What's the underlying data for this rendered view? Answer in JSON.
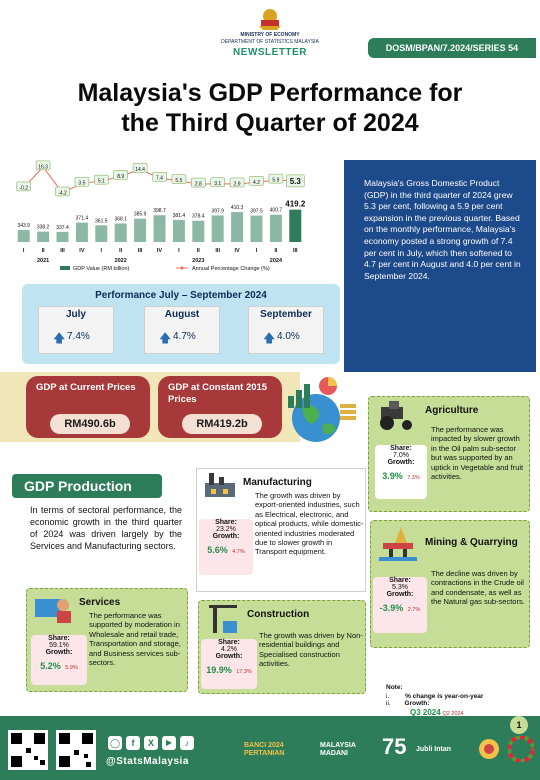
{
  "header": {
    "ministry": "MINISTRY OF ECONOMY",
    "department": "DEPARTMENT OF STATISTICS MALAYSIA",
    "newsletter": "NEWSLETTER",
    "series": "DOSM/BPAN/7.2024/SERIES 54"
  },
  "title_line1": "Malaysia's GDP Performance for",
  "title_line2": "the Third Quarter of 2024",
  "chart_data": {
    "type": "bar",
    "quarters": [
      "I",
      "II",
      "III",
      "IV",
      "I",
      "II",
      "III",
      "IV",
      "I",
      "II",
      "III",
      "IV",
      "I",
      "II",
      "III"
    ],
    "years": [
      "2021",
      "2022",
      "2023",
      "2024"
    ],
    "gdp_values": [
      343.9,
      338.2,
      337.4,
      371.4,
      361.5,
      368.1,
      385.9,
      398.7,
      381.4,
      378.4,
      397.9,
      410.3,
      397.5,
      400.7,
      419.2
    ],
    "gdp_value_labels": [
      "343.9",
      "338.2",
      "337.4",
      "371.4",
      "361.5",
      "368.1",
      "385.9",
      "398.7",
      "381.4",
      "378.4",
      "397.9",
      "410.3",
      "397.5",
      "400.7",
      "419.2"
    ],
    "pct_change": [
      -0.2,
      16.3,
      -4.2,
      3.5,
      5.1,
      8.9,
      14.4,
      7.4,
      5.5,
      2.8,
      3.1,
      2.9,
      4.2,
      5.9,
      5.3
    ],
    "pct_change_labels": [
      "-0.2",
      "16.3",
      "-4.2",
      "3.5",
      "5.1",
      "8.9",
      "14.4",
      "7.4",
      "5.5",
      "2.8",
      "3.1",
      "2.9",
      "4.2",
      "5.9",
      "5.3"
    ],
    "legend_gdp": "GDP Value (RM billion)",
    "legend_pct": "Annual Percentage Change (%)",
    "bar_color": "#2d7d5b",
    "line_color": "#e8705a"
  },
  "summary": "Malaysia's Gross Domestic Product (GDP) in the third quarter of 2024 grew 5.3 per cent, following a 5.9 per cent expansion in the previous quarter. Based on the monthly performance, Malaysia's economy posted a strong growth of 7.4 per cent in July, which then softened to 4.7 per cent in August and 4.0 per cent in September 2024.",
  "performance": {
    "title": "Performance July – September 2024",
    "months": [
      {
        "name": "July",
        "value": "7.4%"
      },
      {
        "name": "August",
        "value": "4.7%"
      },
      {
        "name": "September",
        "value": "4.0%"
      }
    ]
  },
  "gdp_current": {
    "label": "GDP at Current Prices",
    "value": "RM490.6b"
  },
  "gdp_constant": {
    "label": "GDP at Constant 2015 Prices",
    "value": "RM419.2b"
  },
  "production": {
    "title": "GDP Production",
    "text": "In terms of sectoral performance, the economic growth in the third quarter of 2024 was driven largely by the Services and Manufacturing sectors."
  },
  "labels": {
    "share": "Share:",
    "growth": "Growth:"
  },
  "agriculture": {
    "title": "Agriculture",
    "text": "The performance was impacted by slower growth in the Oil palm sub-sector but was supported by an uptick in Vegetable and fruit activities.",
    "share": "7.0%",
    "growth": "3.9%",
    "prev": "7.3%"
  },
  "manufacturing": {
    "title": "Manufacturing",
    "text": "The growth was driven by export-oriented industries, such as Electrical, electronic, and optical products, while domestic-oriented industries moderated due to slower growth in Transport equipment.",
    "share": "23.2%",
    "growth": "5.6%",
    "prev": "4.7%"
  },
  "mining": {
    "title": "Mining & Quarrying",
    "text": "The decline was driven by contractions in the Crude oil and condensate, as well as the Natural gas sub-sectors.",
    "share": "5.3%",
    "growth": "-3.9%",
    "prev": "2.7%"
  },
  "services": {
    "title": "Services",
    "text": "The performance was supported by moderation in Wholesale and retail trade, Transportation and storage, and Business services sub-sectors.",
    "share": "59.1%",
    "growth": "5.2%",
    "prev": "5.9%"
  },
  "construction": {
    "title": "Construction",
    "text": "The growth was driven by Non-residential buildings and Specialised construction activities.",
    "share": "4.2%",
    "growth": "19.9%",
    "prev": "17.3%"
  },
  "note": {
    "title": "Note:",
    "item1_num": "i.",
    "item1": "% change is year-on-year",
    "item2_num": "ii.",
    "item2": "Growth:",
    "q3": "Q3 2024",
    "q2": "Q2 2024"
  },
  "footer": {
    "handle": "@StatsMalaysia",
    "page": "1",
    "logo1": "BANCI 2024 PERTANIAN",
    "logo2": "MALAYSIA MADANI",
    "logo3": "75",
    "logo4": "Jubli Intan"
  }
}
